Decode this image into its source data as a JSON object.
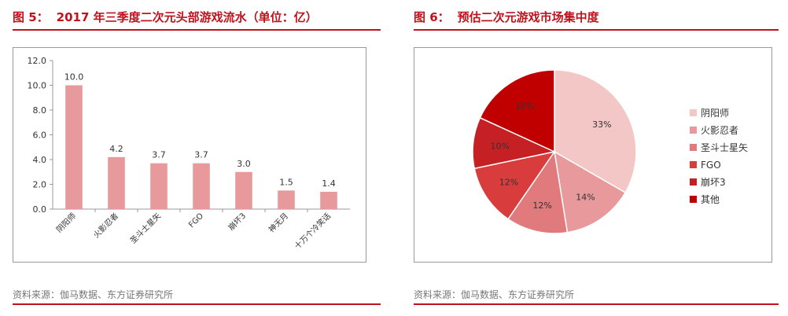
{
  "left": {
    "figure_number": "图 5：",
    "title": "2017 年三季度二次元头部游戏流水（单位：亿）",
    "source": "资料来源：伽马数据、东方证券研究所"
  },
  "right": {
    "figure_number": "图 6：",
    "title": "预估二次元游戏市场集中度",
    "source": "资料来源：伽马数据、东方证券研究所"
  },
  "chart_data": [
    {
      "type": "bar",
      "title": "2017 年三季度二次元头部游戏流水（单位：亿）",
      "categories": [
        "阴阳师",
        "火影忍者",
        "圣斗士星矢",
        "FGO",
        "崩坏3",
        "神无月",
        "十万个冷笑话"
      ],
      "values": [
        10.0,
        4.2,
        3.7,
        3.7,
        3.0,
        1.5,
        1.4
      ],
      "data_labels": [
        "10.0",
        "4.2",
        "3.7",
        "3.7",
        "3.0",
        "1.5",
        "1.4"
      ],
      "yticks": [
        "0.0",
        "2.0",
        "4.0",
        "6.0",
        "8.0",
        "10.0",
        "12.0"
      ],
      "ylim": [
        0,
        12
      ],
      "grid": false,
      "bar_color": "#e8999b"
    },
    {
      "type": "pie",
      "title": "预估二次元游戏市场集中度",
      "labels": [
        "阴阳师",
        "火影忍者",
        "圣斗士星矢",
        "FGO",
        "崩坏3",
        "其他"
      ],
      "values": [
        33,
        14,
        12,
        12,
        10,
        18
      ],
      "data_labels": [
        "33%",
        "14%",
        "12%",
        "12%",
        "10%",
        "18%"
      ],
      "colors": [
        "#f2c7c6",
        "#e8999b",
        "#e07a7c",
        "#d83c3c",
        "#c52024",
        "#c00000"
      ],
      "legend_position": "right"
    }
  ]
}
